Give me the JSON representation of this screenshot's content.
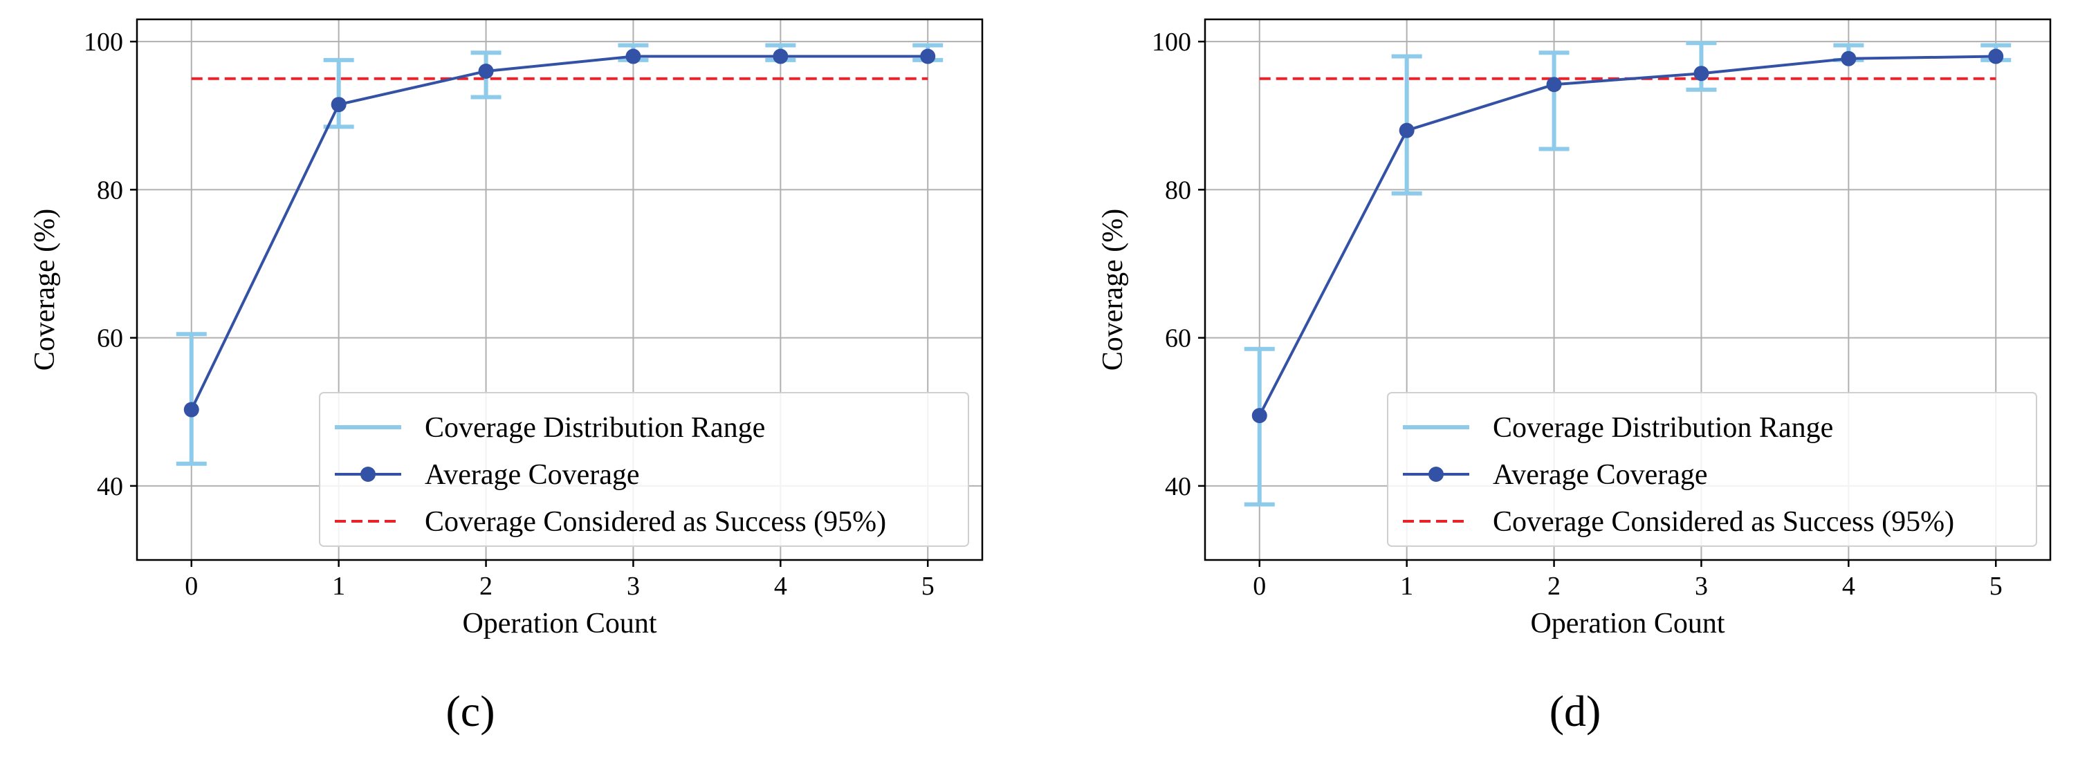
{
  "chart_data": [
    {
      "type": "line",
      "panel_label": "(c)",
      "xlabel": "Operation Count",
      "ylabel": "Coverage (%)",
      "x": [
        0,
        1,
        2,
        3,
        4,
        5
      ],
      "xticks": [
        "0",
        "1",
        "2",
        "3",
        "4",
        "5"
      ],
      "yticks": [
        "40",
        "60",
        "80",
        "100"
      ],
      "xlim": [
        -0.37,
        5.37
      ],
      "ylim": [
        30,
        103
      ],
      "grid": true,
      "legend_position": "lower-right",
      "series": [
        {
          "name": "Coverage Distribution Range",
          "kind": "errorbar",
          "low": [
            43,
            88.5,
            92.5,
            97.5,
            97.5,
            97.5
          ],
          "high": [
            60.5,
            97.5,
            98.5,
            99.5,
            99.5,
            99.5
          ],
          "color": "#8ecbea"
        },
        {
          "name": "Average Coverage",
          "kind": "line-marker",
          "values": [
            50.3,
            91.5,
            96,
            98,
            98,
            98
          ],
          "color": "#3452a5"
        },
        {
          "name": "Coverage Considered as Success (95%)",
          "kind": "dashed",
          "values": [
            95,
            95,
            95,
            95,
            95,
            95
          ],
          "color": "#e8232a"
        }
      ]
    },
    {
      "type": "line",
      "panel_label": "(d)",
      "xlabel": "Operation Count",
      "ylabel": "Coverage (%)",
      "x": [
        0,
        1,
        2,
        3,
        4,
        5
      ],
      "xticks": [
        "0",
        "1",
        "2",
        "3",
        "4",
        "5"
      ],
      "yticks": [
        "40",
        "60",
        "80",
        "100"
      ],
      "xlim": [
        -0.37,
        5.37
      ],
      "ylim": [
        30,
        103
      ],
      "grid": true,
      "legend_position": "lower-right",
      "series": [
        {
          "name": "Coverage Distribution Range",
          "kind": "errorbar",
          "low": [
            37.5,
            79.5,
            85.5,
            93.5,
            97.5,
            97.5
          ],
          "high": [
            58.5,
            98,
            98.5,
            99.8,
            99.5,
            99.5
          ],
          "color": "#8ecbea"
        },
        {
          "name": "Average Coverage",
          "kind": "line-marker",
          "values": [
            49.5,
            88,
            94.2,
            95.7,
            97.7,
            98
          ],
          "color": "#3452a5"
        },
        {
          "name": "Coverage Considered as Success (95%)",
          "kind": "dashed",
          "values": [
            95,
            95,
            95,
            95,
            95,
            95
          ],
          "color": "#e8232a"
        }
      ]
    }
  ]
}
